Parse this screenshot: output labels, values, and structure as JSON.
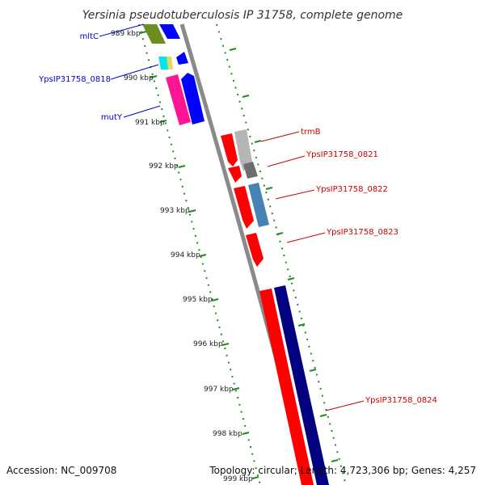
{
  "title": "Yersinia pseudotuberculosis IP 31758, complete genome",
  "accession": "Accession: NC_009708",
  "topology": "Topology: circular; Length: 4,723,306 bp; Genes: 4,257",
  "ticks": [
    "989 kbp",
    "990 kbp",
    "991 kbp",
    "992 kbp",
    "993 kbp",
    "994 kbp",
    "995 kbp",
    "996 kbp",
    "997 kbp",
    "998 kbp",
    "999 kbp"
  ],
  "genes_forward": [
    "mltC",
    "YpsIP31758_0818",
    "mutY"
  ],
  "genes_reverse": [
    "trmB",
    "YpsIP31758_0821",
    "YpsIP31758_0822",
    "YpsIP31758_0823",
    "YpsIP31758_0824"
  ],
  "colors": {
    "forward_label": "#0000cc",
    "reverse_label": "#cc0000",
    "tick_marks": "#228b22",
    "backbone": "#888888",
    "red": "#ff0000",
    "navy": "#000080",
    "blue": "#0000ff",
    "magenta": "#ff1493",
    "olive": "#6b8e23",
    "cyan": "#00ffff",
    "grey": "#b5b5b5",
    "steelblue": "#4682b4"
  }
}
